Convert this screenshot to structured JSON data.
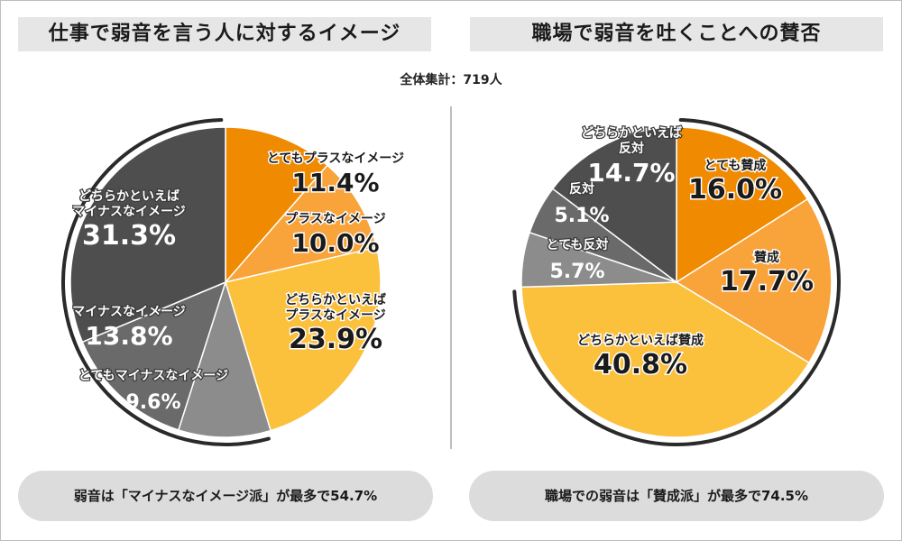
{
  "header": {
    "left_title": "仕事で弱音を言う人に対するイメージ",
    "right_title": "職場で弱音を吐くことへの賛否",
    "total": "全体集計：719人"
  },
  "footer": {
    "left_summary": "弱音は「マイナスなイメージ派」が最多で54.7%",
    "right_summary": "職場での弱音は「賛成派」が最多で74.5%"
  },
  "colors": {
    "orange": "#f08a00",
    "light_orange": "#f9a33b",
    "yellow": "#fbc03c",
    "dark_gray": "#4e4e4e",
    "mid_gray": "#6a6a6a",
    "light_gray": "#8c8c8c",
    "ring": "#2a2a2a"
  },
  "chart_data": [
    {
      "type": "pie",
      "title": "仕事で弱音を言う人に対するイメージ",
      "total_respondents": 719,
      "unit": "%",
      "categories": [
        "とてもプラスなイメージ",
        "プラスなイメージ",
        "どちらかといえばプラスなイメージ",
        "とてもマイナスなイメージ",
        "マイナスなイメージ",
        "どちらかといえばマイナスなイメージ"
      ],
      "values": [
        11.4,
        10.0,
        23.9,
        9.6,
        13.8,
        31.3
      ],
      "value_labels": [
        "11.4%",
        "10.0%",
        "23.9%",
        "9.6%",
        "13.8%",
        "31.3%"
      ],
      "slice_colors": [
        "#f08a00",
        "#f9a33b",
        "#fbc03c",
        "#8c8c8c",
        "#6a6a6a",
        "#4e4e4e"
      ],
      "label_lines": [
        [
          "とてもプラスなイメージ"
        ],
        [
          "プラスなイメージ"
        ],
        [
          "どちらかといえば",
          "プラスなイメージ"
        ],
        [
          "とてもマイナスなイメージ"
        ],
        [
          "マイナスなイメージ"
        ],
        [
          "どちらかといえば",
          "マイナスなイメージ"
        ]
      ],
      "highlight_group": {
        "name": "マイナスなイメージ派",
        "total": 54.7
      }
    },
    {
      "type": "pie",
      "title": "職場で弱音を吐くことへの賛否",
      "total_respondents": 719,
      "unit": "%",
      "categories": [
        "とても賛成",
        "賛成",
        "どちらかといえば賛成",
        "とても反対",
        "反対",
        "どちらかといえば反対"
      ],
      "values": [
        16.0,
        17.7,
        40.8,
        5.7,
        5.1,
        14.7
      ],
      "value_labels": [
        "16.0%",
        "17.7%",
        "40.8%",
        "5.7%",
        "5.1%",
        "14.7%"
      ],
      "slice_colors": [
        "#f08a00",
        "#f9a33b",
        "#fbc03c",
        "#8c8c8c",
        "#6a6a6a",
        "#4e4e4e"
      ],
      "label_lines": [
        [
          "とても賛成"
        ],
        [
          "賛成"
        ],
        [
          "どちらかといえば賛成"
        ],
        [
          "とても反対"
        ],
        [
          "反対"
        ],
        [
          "どちらかといえば",
          "反対"
        ]
      ],
      "highlight_group": {
        "name": "賛成派",
        "total": 74.5
      }
    }
  ]
}
